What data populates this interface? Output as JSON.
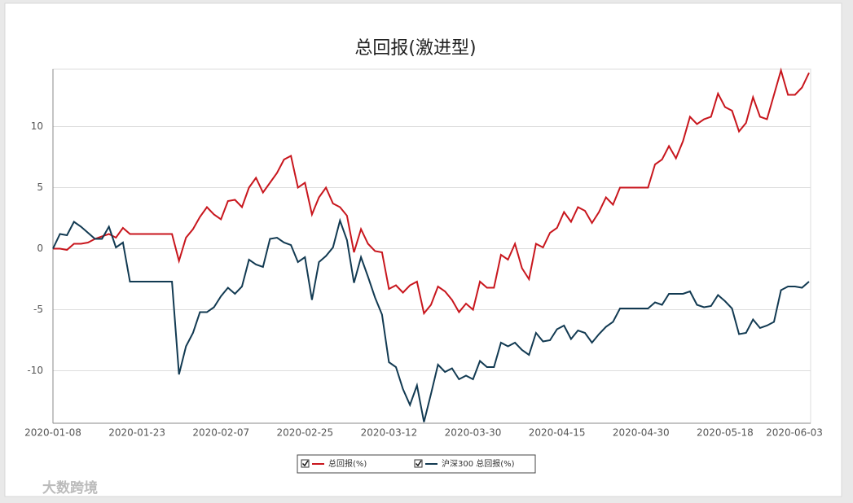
{
  "chart_data": {
    "type": "line",
    "title": "总回报(激进型)",
    "watermark": "大数跨境",
    "categories": [
      "2020-01-08",
      null,
      null,
      null,
      null,
      null,
      null,
      null,
      null,
      null,
      null,
      null,
      "2020-01-23",
      null,
      null,
      null,
      null,
      null,
      null,
      null,
      null,
      null,
      null,
      null,
      "2020-02-07",
      null,
      null,
      null,
      null,
      null,
      null,
      null,
      null,
      null,
      null,
      null,
      "2020-02-25",
      null,
      null,
      null,
      null,
      null,
      null,
      null,
      null,
      null,
      null,
      null,
      "2020-03-12",
      null,
      null,
      null,
      null,
      null,
      null,
      null,
      null,
      null,
      null,
      null,
      "2020-03-30",
      null,
      null,
      null,
      null,
      null,
      null,
      null,
      null,
      null,
      null,
      null,
      "2020-04-15",
      null,
      null,
      null,
      null,
      null,
      null,
      null,
      null,
      null,
      null,
      null,
      "2020-04-30",
      null,
      null,
      null,
      null,
      null,
      null,
      null,
      null,
      null,
      null,
      null,
      "2020-05-18",
      null,
      null,
      null,
      null,
      null,
      null,
      null,
      null,
      null,
      null,
      null,
      "2020-06-03"
    ],
    "series": [
      {
        "name": "总回报(%)",
        "color": "#c8161d",
        "values": [
          0,
          0,
          -0.1,
          0.4,
          0.4,
          0.5,
          0.8,
          1.0,
          1.2,
          0.9,
          1.7,
          1.2,
          1.2,
          1.2,
          1.2,
          1.2,
          1.2,
          1.2,
          -1.0,
          0.9,
          1.6,
          2.6,
          3.4,
          2.8,
          2.4,
          3.9,
          4.0,
          3.4,
          5.0,
          5.8,
          4.6,
          5.4,
          6.2,
          7.3,
          7.6,
          5.0,
          5.4,
          2.8,
          4.2,
          5.0,
          3.7,
          3.4,
          2.7,
          -0.3,
          1.6,
          0.4,
          -0.2,
          -0.3,
          -3.3,
          -3.0,
          -3.6,
          -3.0,
          -2.7,
          -5.3,
          -4.6,
          -3.1,
          -3.5,
          -4.2,
          -5.2,
          -4.5,
          -5.0,
          -2.7,
          -3.2,
          -3.2,
          -0.5,
          -0.9,
          0.4,
          -1.6,
          -2.5,
          0.4,
          0.1,
          1.3,
          1.7,
          3.0,
          2.2,
          3.4,
          3.1,
          2.1,
          3.0,
          4.2,
          3.6,
          5.0,
          5.0,
          5.0,
          5.0,
          5.0,
          6.9,
          7.3,
          8.4,
          7.4,
          8.8,
          10.8,
          10.2,
          10.6,
          10.8,
          12.7,
          11.6,
          11.3,
          9.6,
          10.3,
          12.4,
          10.8,
          10.6,
          12.6,
          14.6,
          12.6,
          12.6,
          13.2,
          14.4
        ]
      },
      {
        "name": "沪深300 总回报(%)",
        "color": "#123a52",
        "values": [
          0,
          1.2,
          1.1,
          2.2,
          1.8,
          1.3,
          0.8,
          0.8,
          1.8,
          0.1,
          0.5,
          -2.7,
          -2.7,
          -2.7,
          -2.7,
          -2.7,
          -2.7,
          -2.7,
          -10.3,
          -8.0,
          -6.9,
          -5.2,
          -5.2,
          -4.8,
          -3.9,
          -3.2,
          -3.7,
          -3.1,
          -0.9,
          -1.3,
          -1.5,
          0.8,
          0.9,
          0.5,
          0.3,
          -1.1,
          -0.7,
          -4.2,
          -1.1,
          -0.6,
          0.1,
          2.3,
          0.7,
          -2.8,
          -0.7,
          -2.3,
          -4.0,
          -5.4,
          -9.3,
          -9.7,
          -11.5,
          -12.8,
          -11.2,
          -14.2,
          -11.9,
          -9.5,
          -10.1,
          -9.8,
          -10.7,
          -10.4,
          -10.7,
          -9.2,
          -9.7,
          -9.7,
          -7.7,
          -8.0,
          -7.7,
          -8.3,
          -8.7,
          -6.9,
          -7.6,
          -7.5,
          -6.6,
          -6.3,
          -7.4,
          -6.7,
          -6.9,
          -7.7,
          -7.0,
          -6.4,
          -6.0,
          -4.9,
          -4.9,
          -4.9,
          -4.9,
          -4.9,
          -4.4,
          -4.6,
          -3.7,
          -3.7,
          -3.7,
          -3.5,
          -4.6,
          -4.8,
          -4.7,
          -3.8,
          -4.3,
          -4.9,
          -7.0,
          -6.9,
          -5.8,
          -6.5,
          -6.3,
          -6.0,
          -3.4,
          -3.1,
          -3.1,
          -3.2,
          -2.7
        ]
      }
    ],
    "ylim": [
      -14.3,
      14.7
    ],
    "yticks": [
      -10,
      -5,
      0,
      5,
      10
    ],
    "grid": true
  }
}
